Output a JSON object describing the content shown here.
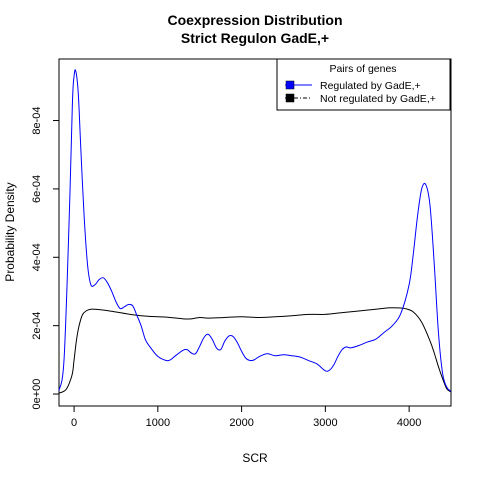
{
  "chart_data": {
    "type": "line",
    "title": [
      "Coexpression Distribution",
      "Strict Regulon GadE,+"
    ],
    "xlabel": "SCR",
    "ylabel": "Probability Density",
    "xlim": [
      -180,
      4500
    ],
    "ylim": [
      -3.5e-05,
      0.00098
    ],
    "x_ticks": [
      0,
      1000,
      2000,
      3000,
      4000
    ],
    "x_tick_labels": [
      "0",
      "1000",
      "2000",
      "3000",
      "4000"
    ],
    "y_ticks": [
      0,
      0.0002,
      0.0004,
      0.0006,
      0.0008
    ],
    "y_tick_labels": [
      "0e+00",
      "2e-04",
      "4e-04",
      "6e-04",
      "8e-04"
    ],
    "grid": false,
    "legend": {
      "title": "Pairs of genes",
      "placement": "top-right",
      "entries": [
        "Regulated by  GadE,+",
        "Not regulated by  GadE,+"
      ]
    },
    "series": [
      {
        "name": "Regulated by  GadE,+",
        "color": "#0000ff",
        "x": [
          -180,
          -120,
          -60,
          -20,
          0,
          20,
          50,
          80,
          120,
          160,
          200,
          250,
          300,
          350,
          400,
          450,
          500,
          550,
          600,
          650,
          700,
          750,
          800,
          850,
          900,
          1000,
          1100,
          1150,
          1200,
          1300,
          1350,
          1400,
          1450,
          1500,
          1550,
          1600,
          1650,
          1700,
          1750,
          1800,
          1850,
          1900,
          1950,
          2000,
          2050,
          2100,
          2150,
          2200,
          2300,
          2400,
          2500,
          2600,
          2700,
          2800,
          2900,
          3000,
          3050,
          3100,
          3150,
          3200,
          3250,
          3300,
          3400,
          3500,
          3600,
          3700,
          3800,
          3900,
          4000,
          4050,
          4100,
          4150,
          4200,
          4250,
          4300,
          4350,
          4400,
          4450,
          4500
        ],
        "y": [
          1e-05,
          0.0001,
          0.0005,
          0.00085,
          0.00093,
          0.000945,
          0.00088,
          0.00072,
          0.00052,
          0.00038,
          0.00032,
          0.00032,
          0.000335,
          0.00034,
          0.000325,
          0.0003,
          0.00027,
          0.00025,
          0.000255,
          0.000262,
          0.000258,
          0.00023,
          0.0002,
          0.00016,
          0.00014,
          0.00011,
          9.8e-05,
          0.0001,
          0.00011,
          0.000128,
          0.00013,
          0.00012,
          0.000118,
          0.00014,
          0.000165,
          0.000175,
          0.00016,
          0.000135,
          0.00013,
          0.000155,
          0.00017,
          0.000168,
          0.00015,
          0.000125,
          0.000105,
          9.8e-05,
          0.0001,
          0.000108,
          0.000118,
          0.000112,
          0.000115,
          0.000112,
          0.000108,
          9.8e-05,
          8.8e-05,
          6.8e-05,
          7e-05,
          8.5e-05,
          0.00011,
          0.00013,
          0.000138,
          0.000135,
          0.000142,
          0.000152,
          0.00016,
          0.00018,
          0.0002,
          0.000235,
          0.00032,
          0.00041,
          0.00052,
          0.0006,
          0.000612,
          0.00055,
          0.00038,
          0.00018,
          6e-05,
          2e-05,
          8e-06
        ]
      },
      {
        "name": "Not regulated by  GadE,+",
        "color": "#000000",
        "x": [
          -180,
          -150,
          -100,
          -60,
          -20,
          0,
          30,
          60,
          100,
          150,
          200,
          250,
          300,
          400,
          500,
          700,
          900,
          1100,
          1300,
          1400,
          1500,
          1600,
          1800,
          2000,
          2200,
          2400,
          2600,
          2800,
          3000,
          3200,
          3400,
          3600,
          3750,
          3850,
          3950,
          4050,
          4150,
          4250,
          4300,
          4350,
          4400,
          4450,
          4500
        ],
        "y": [
          3e-06,
          5e-06,
          1.2e-05,
          3e-05,
          6e-05,
          0.0001,
          0.00016,
          0.0002,
          0.000232,
          0.000244,
          0.000248,
          0.000248,
          0.000247,
          0.000244,
          0.00024,
          0.000232,
          0.000227,
          0.000225,
          0.00022,
          0.00022,
          0.000224,
          0.000222,
          0.000224,
          0.000226,
          0.000224,
          0.000226,
          0.000229,
          0.000233,
          0.000233,
          0.000238,
          0.000243,
          0.000248,
          0.000252,
          0.000252,
          0.00025,
          0.00024,
          0.00021,
          0.000155,
          0.00012,
          8e-05,
          4.5e-05,
          1.5e-05,
          6e-06
        ]
      }
    ]
  }
}
